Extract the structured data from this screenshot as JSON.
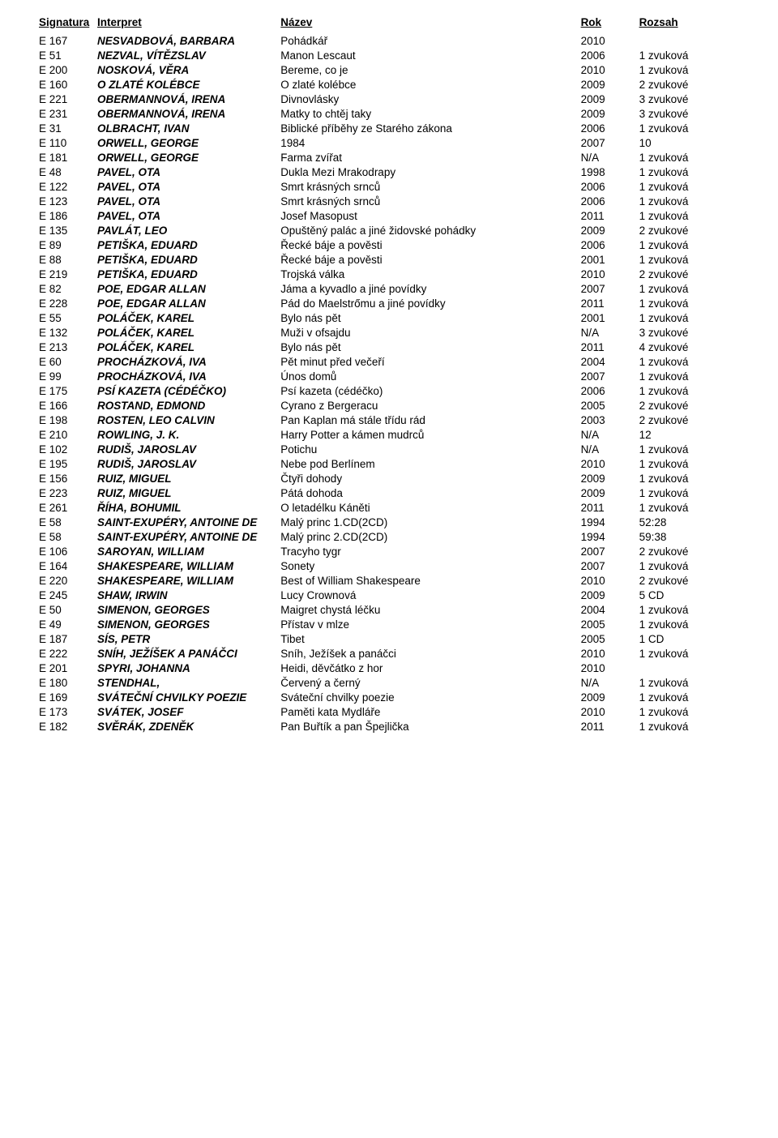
{
  "headers": {
    "signatura": "Signatura",
    "interpret": "Interpret",
    "nazev": "Název",
    "rok": "Rok",
    "rozsah": "Rozsah"
  },
  "rows": [
    {
      "sig": "E 167",
      "int": "NESVADBOVÁ, BARBARA",
      "naz": "Pohádkář",
      "rok": "2010",
      "roz": ""
    },
    {
      "sig": "E 51",
      "int": "NEZVAL, VÍTĚZSLAV",
      "naz": "Manon Lescaut",
      "rok": "2006",
      "roz": "1 zvuková"
    },
    {
      "sig": "E 200",
      "int": "NOSKOVÁ, VĚRA",
      "naz": "Bereme, co je",
      "rok": "2010",
      "roz": "1 zvuková"
    },
    {
      "sig": "E 160",
      "int": "O ZLATÉ KOLÉBCE",
      "naz": "O zlaté kolébce",
      "rok": "2009",
      "roz": "2 zvukové"
    },
    {
      "sig": "E 221",
      "int": "OBERMANNOVÁ, IRENA",
      "naz": "Divnovlásky",
      "rok": "2009",
      "roz": "3 zvukové"
    },
    {
      "sig": "E 231",
      "int": "OBERMANNOVÁ, IRENA",
      "naz": "Matky to chtěj taky",
      "rok": "2009",
      "roz": "3 zvukové"
    },
    {
      "sig": "E 31",
      "int": "OLBRACHT, IVAN",
      "naz": "Biblické příběhy ze Starého zákona",
      "rok": "2006",
      "roz": "1 zvuková"
    },
    {
      "sig": "E 110",
      "int": "ORWELL, GEORGE",
      "naz": "1984",
      "rok": "2007",
      "roz": "10"
    },
    {
      "sig": "E 181",
      "int": "ORWELL, GEORGE",
      "naz": "Farma zvířat",
      "rok": "N/A",
      "roz": "1 zvuková"
    },
    {
      "sig": "E 48",
      "int": "PAVEL, OTA",
      "naz": "Dukla Mezi Mrakodrapy",
      "rok": "1998",
      "roz": "1 zvuková"
    },
    {
      "sig": "E 122",
      "int": "PAVEL, OTA",
      "naz": "Smrt krásných srnců",
      "rok": "2006",
      "roz": "1 zvuková"
    },
    {
      "sig": "E 123",
      "int": "PAVEL, OTA",
      "naz": "Smrt krásných srnců",
      "rok": "2006",
      "roz": "1 zvuková"
    },
    {
      "sig": "E 186",
      "int": "PAVEL, OTA",
      "naz": "Josef Masopust",
      "rok": "2011",
      "roz": "1 zvuková"
    },
    {
      "sig": "E 135",
      "int": "PAVLÁT, LEO",
      "naz": "Opuštěný palác a jiné židovské pohádky",
      "rok": "2009",
      "roz": "2 zvukové"
    },
    {
      "sig": "E 89",
      "int": "PETIŠKA, EDUARD",
      "naz": "Řecké báje a pověsti",
      "rok": "2006",
      "roz": "1 zvuková"
    },
    {
      "sig": "E 88",
      "int": "PETIŠKA, EDUARD",
      "naz": "Řecké báje a pověsti",
      "rok": "2001",
      "roz": "1 zvuková"
    },
    {
      "sig": "E 219",
      "int": "PETIŠKA, EDUARD",
      "naz": "Trojská válka",
      "rok": "2010",
      "roz": "2 zvukové"
    },
    {
      "sig": "E 82",
      "int": "POE, EDGAR ALLAN",
      "naz": "Jáma a kyvadlo a jiné povídky",
      "rok": "2007",
      "roz": "1 zvuková"
    },
    {
      "sig": "E 228",
      "int": "POE, EDGAR ALLAN",
      "naz": "Pád do Maelstrőmu a jiné povídky",
      "rok": "2011",
      "roz": "1 zvuková"
    },
    {
      "sig": "E 55",
      "int": "POLÁČEK, KAREL",
      "naz": "Bylo nás pět",
      "rok": "2001",
      "roz": "1 zvuková"
    },
    {
      "sig": "E 132",
      "int": "POLÁČEK, KAREL",
      "naz": "Muži v ofsajdu",
      "rok": "N/A",
      "roz": "3 zvukové"
    },
    {
      "sig": "E 213",
      "int": "POLÁČEK, KAREL",
      "naz": "Bylo nás pět",
      "rok": "2011",
      "roz": "4 zvukové"
    },
    {
      "sig": "E 60",
      "int": "PROCHÁZKOVÁ, IVA",
      "naz": "Pět minut před večeří",
      "rok": "2004",
      "roz": "1 zvuková"
    },
    {
      "sig": "E 99",
      "int": "PROCHÁZKOVÁ, IVA",
      "naz": "Únos domů",
      "rok": "2007",
      "roz": "1 zvuková"
    },
    {
      "sig": "E 175",
      "int": "PSÍ KAZETA (CÉDÉČKO)",
      "naz": "Psí kazeta (cédéčko)",
      "rok": "2006",
      "roz": "1 zvuková"
    },
    {
      "sig": "E 166",
      "int": "ROSTAND, EDMOND",
      "naz": "Cyrano z Bergeracu",
      "rok": "2005",
      "roz": "2 zvukové"
    },
    {
      "sig": "E 198",
      "int": "ROSTEN, LEO CALVIN",
      "naz": "Pan Kaplan má stále třídu rád",
      "rok": "2003",
      "roz": "2 zvukové"
    },
    {
      "sig": "E 210",
      "int": "ROWLING, J. K.",
      "naz": "Harry Potter a kámen mudrců",
      "rok": "N/A",
      "roz": "12"
    },
    {
      "sig": "E 102",
      "int": "RUDIŠ, JAROSLAV",
      "naz": "Potichu",
      "rok": "N/A",
      "roz": "1 zvuková"
    },
    {
      "sig": "E 195",
      "int": "RUDIŠ, JAROSLAV",
      "naz": "Nebe pod Berlínem",
      "rok": "2010",
      "roz": "1 zvuková"
    },
    {
      "sig": "E 156",
      "int": "RUIZ, MIGUEL",
      "naz": "Čtyři dohody",
      "rok": "2009",
      "roz": "1 zvuková"
    },
    {
      "sig": "E 223",
      "int": "RUIZ, MIGUEL",
      "naz": "Pátá dohoda",
      "rok": "2009",
      "roz": "1 zvuková"
    },
    {
      "sig": "E 261",
      "int": "ŘÍHA, BOHUMIL",
      "naz": "O letadélku Káněti",
      "rok": "2011",
      "roz": "1 zvuková"
    },
    {
      "sig": "E 58",
      "int": "SAINT-EXUPÉRY, ANTOINE DE",
      "naz": "Malý princ 1.CD(2CD)",
      "rok": "1994",
      "roz": "52:28"
    },
    {
      "sig": "E 58",
      "int": "SAINT-EXUPÉRY, ANTOINE DE",
      "naz": "Malý princ 2.CD(2CD)",
      "rok": "1994",
      "roz": "59:38"
    },
    {
      "sig": "E 106",
      "int": "SAROYAN, WILLIAM",
      "naz": "Tracyho tygr",
      "rok": "2007",
      "roz": "2 zvukové"
    },
    {
      "sig": "E 164",
      "int": "SHAKESPEARE, WILLIAM",
      "naz": "Sonety",
      "rok": "2007",
      "roz": "1 zvuková"
    },
    {
      "sig": "E 220",
      "int": "SHAKESPEARE, WILLIAM",
      "naz": "Best of William Shakespeare",
      "rok": "2010",
      "roz": "2 zvukové"
    },
    {
      "sig": "E 245",
      "int": "SHAW, IRWIN",
      "naz": "Lucy Crownová",
      "rok": "2009",
      "roz": "5 CD"
    },
    {
      "sig": "E 50",
      "int": "SIMENON, GEORGES",
      "naz": "Maigret chystá léčku",
      "rok": "2004",
      "roz": "1 zvuková"
    },
    {
      "sig": "E 49",
      "int": "SIMENON, GEORGES",
      "naz": "Přístav v mlze",
      "rok": "2005",
      "roz": "1 zvuková"
    },
    {
      "sig": "E 187",
      "int": "SÍS, PETR",
      "naz": "Tibet",
      "rok": "2005",
      "roz": "1 CD"
    },
    {
      "sig": "E 222",
      "int": "SNÍH, JEŽÍŠEK A PANÁČCI",
      "naz": "Sníh, Ježíšek a panáčci",
      "rok": "2010",
      "roz": "1 zvuková"
    },
    {
      "sig": "E 201",
      "int": "SPYRI, JOHANNA",
      "naz": "Heidi, děvčátko z hor",
      "rok": "2010",
      "roz": ""
    },
    {
      "sig": "E 180",
      "int": "STENDHAL,",
      "naz": "Červený a černý",
      "rok": "N/A",
      "roz": "1 zvuková"
    },
    {
      "sig": "E 169",
      "int": "SVÁTEČNÍ CHVILKY POEZIE",
      "naz": "Sváteční chvilky poezie",
      "rok": "2009",
      "roz": "1 zvuková"
    },
    {
      "sig": "E 173",
      "int": "SVÁTEK, JOSEF",
      "naz": "Paměti kata Mydláře",
      "rok": "2010",
      "roz": "1 zvuková"
    },
    {
      "sig": "E 182",
      "int": "SVĚRÁK, ZDENĚK",
      "naz": "Pan Buřtík a pan Špejlička",
      "rok": "2011",
      "roz": "1 zvuková"
    }
  ]
}
